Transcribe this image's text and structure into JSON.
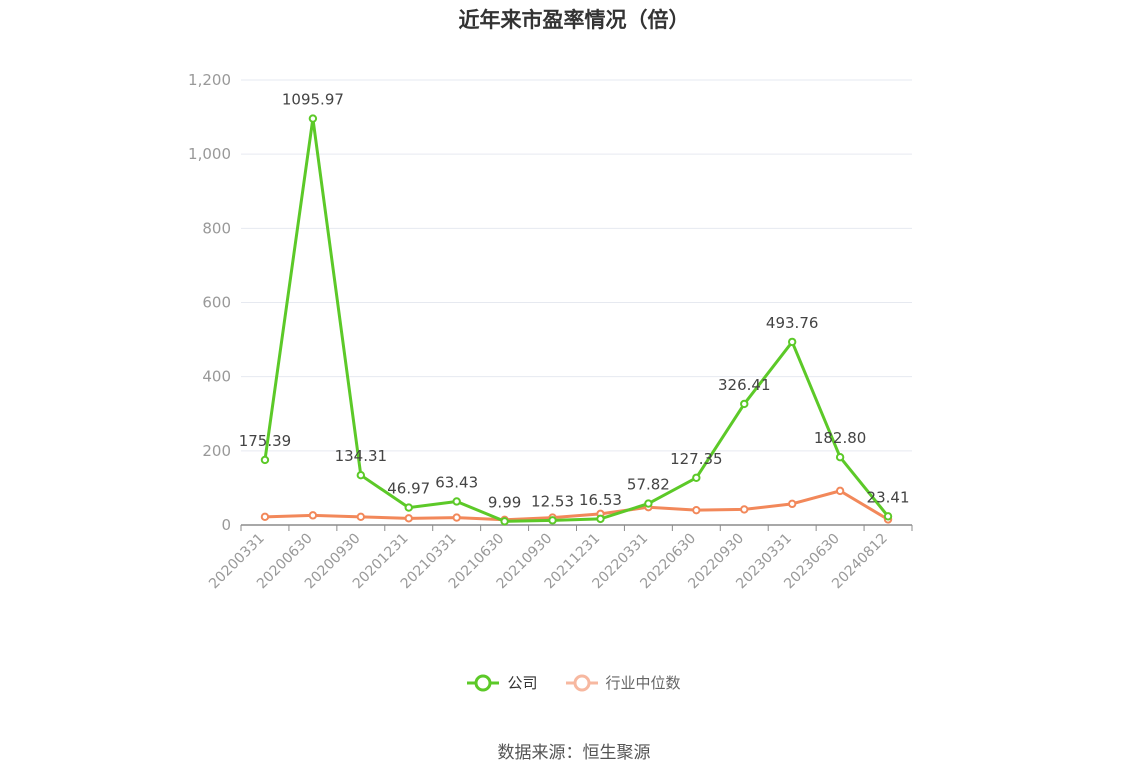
{
  "title": "近年来市盈率情况（倍）",
  "source": "数据来源：恒生聚源",
  "colors": {
    "company": "#5cc928",
    "industry": "#f2885a",
    "industry_legend": "#f7b8a0",
    "grid": "#e6e9f0",
    "axis_text": "#999999",
    "label_text": "#444444"
  },
  "chart_data": {
    "type": "line",
    "title": "近年来市盈率情况（倍）",
    "xlabel": "",
    "ylabel": "",
    "x": [
      "20200331",
      "20200630",
      "20200930",
      "20201231",
      "20210331",
      "20210630",
      "20210930",
      "20211231",
      "20220331",
      "20220630",
      "20220930",
      "20230331",
      "20230630",
      "20240812"
    ],
    "ylim": [
      0,
      1200
    ],
    "yticks": [
      0,
      200,
      400,
      600,
      800,
      1000,
      1200
    ],
    "ytick_labels": [
      "0",
      "200",
      "400",
      "600",
      "800",
      "1,000",
      "1,200"
    ],
    "grid": true,
    "legend_position": "bottom-center",
    "series": [
      {
        "name": "公司",
        "key": "company",
        "values": [
          175.39,
          1095.97,
          134.31,
          46.97,
          63.43,
          9.99,
          12.53,
          16.53,
          57.82,
          127.35,
          326.41,
          493.76,
          182.8,
          23.41
        ],
        "labels": [
          "175.39",
          "1095.97",
          "134.31",
          "46.97",
          "63.43",
          "9.99",
          "12.53",
          "16.53",
          "57.82",
          "127.35",
          "326.41",
          "493.76",
          "182.80",
          "23.41"
        ]
      },
      {
        "name": "行业中位数",
        "key": "industry",
        "values": [
          22,
          26,
          22,
          18,
          20,
          14,
          20,
          30,
          48,
          40,
          42,
          57,
          92,
          15
        ]
      }
    ]
  }
}
